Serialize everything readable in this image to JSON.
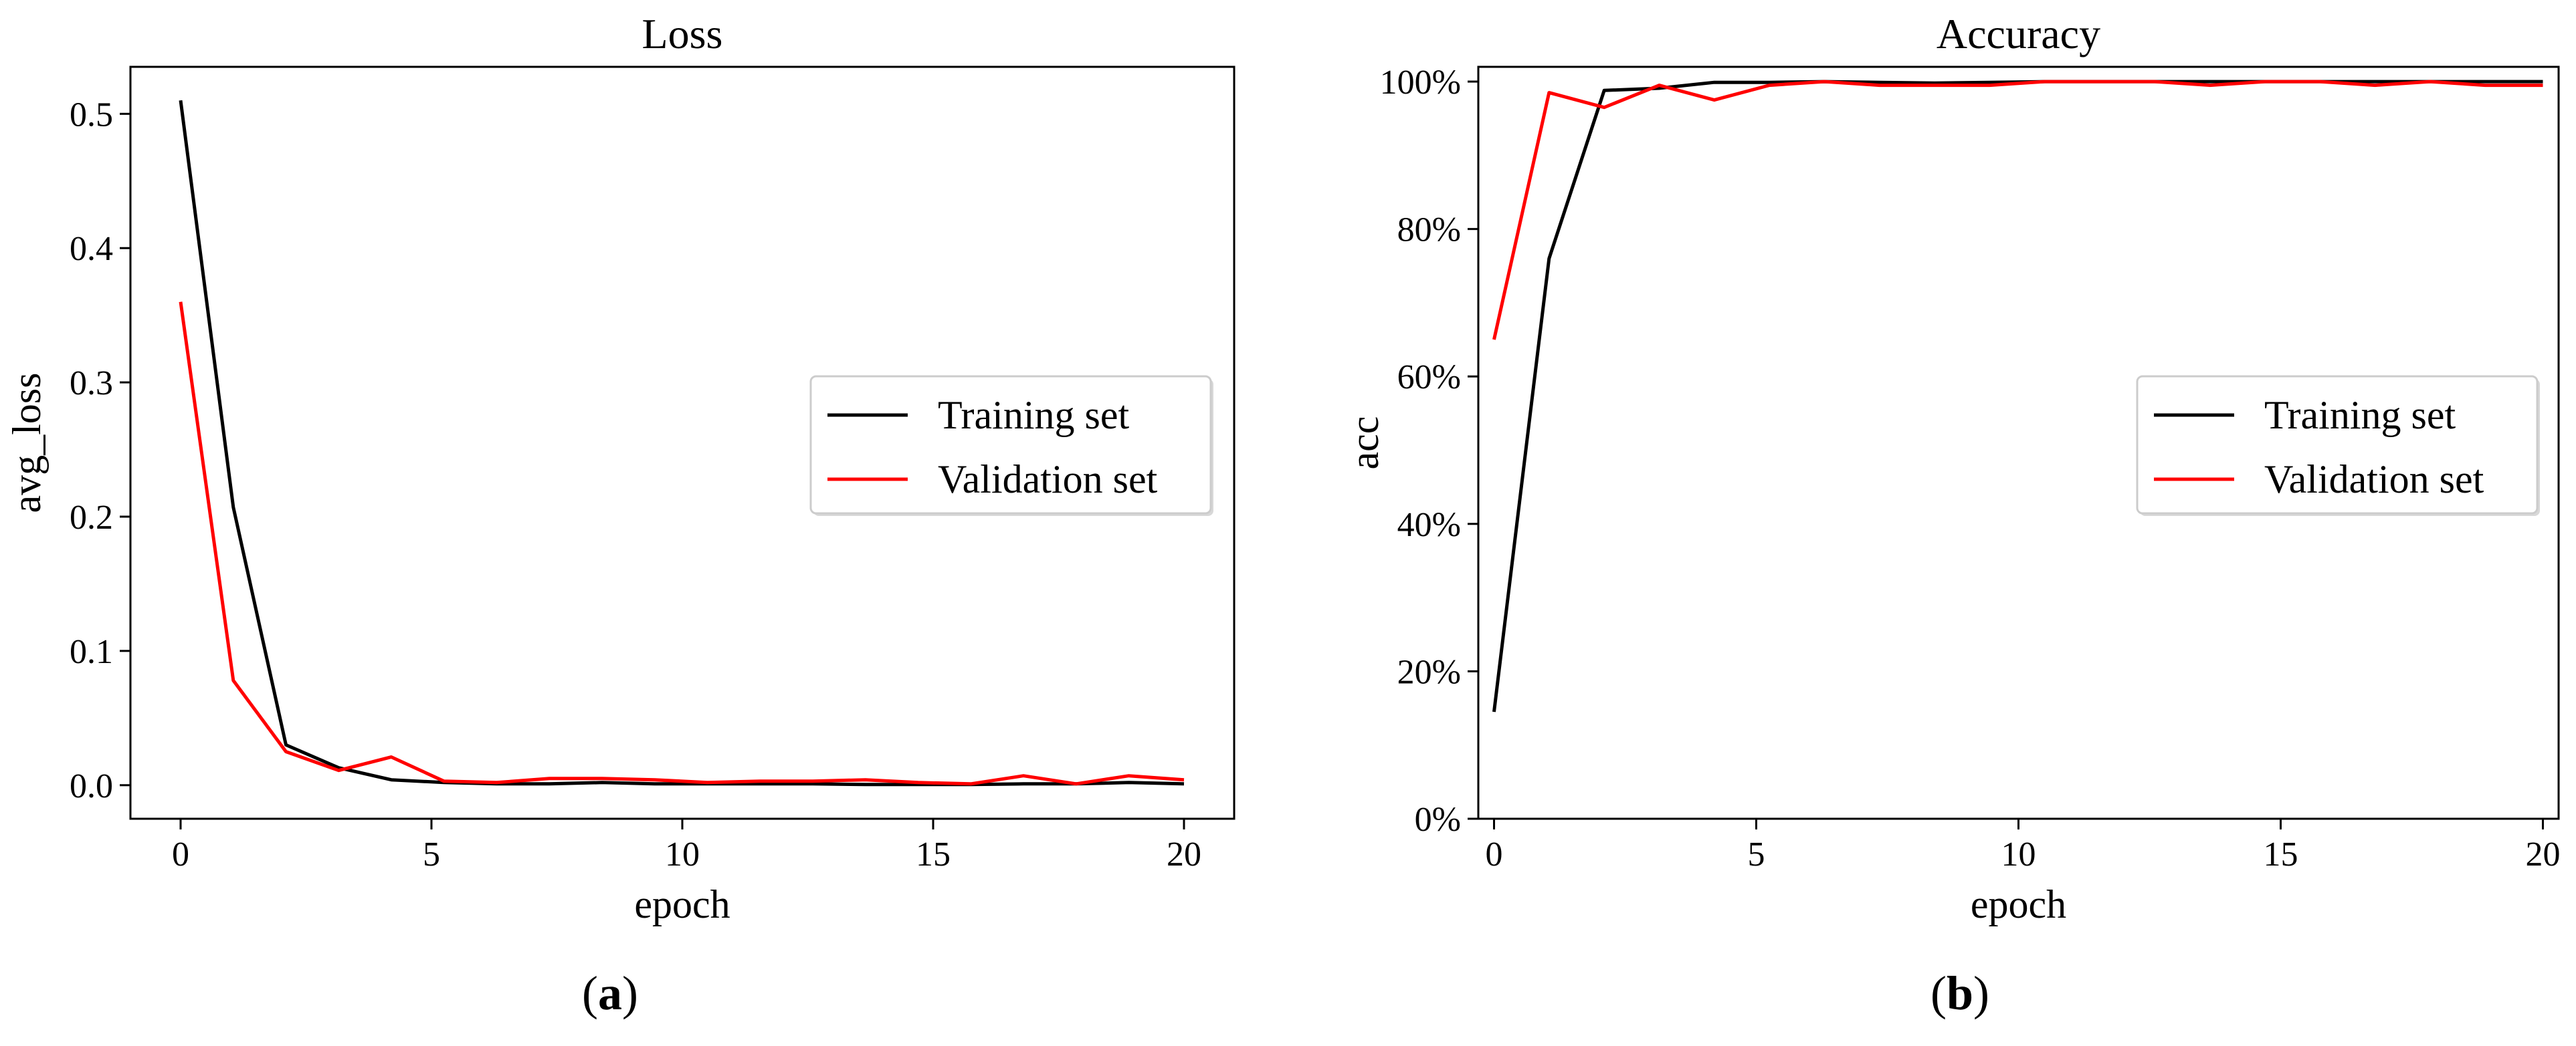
{
  "chart_data": [
    {
      "type": "line",
      "title": "Loss",
      "xlabel": "epoch",
      "ylabel": "avg_loss",
      "caption_open": "(",
      "caption_letter": "a",
      "caption_close": ")",
      "xlim": [
        -1,
        21
      ],
      "ylim": [
        -0.025,
        0.535
      ],
      "xticks": [
        0,
        5,
        10,
        15,
        20
      ],
      "xtick_labels": [
        "0",
        "5",
        "10",
        "15",
        "20"
      ],
      "yticks": [
        0.0,
        0.1,
        0.2,
        0.3,
        0.4,
        0.5
      ],
      "ytick_labels": [
        "0.0",
        "0.1",
        "0.2",
        "0.3",
        "0.4",
        "0.5"
      ],
      "legend_position": "center-right",
      "grid": false,
      "series": [
        {
          "name": "Training set",
          "color": "#000000",
          "x": [
            0,
            1.05,
            2.1,
            3.15,
            4.2,
            5.25,
            6.3,
            7.35,
            8.4,
            9.45,
            10.5,
            11.55,
            12.6,
            13.65,
            14.7,
            15.75,
            16.8,
            17.85,
            18.9,
            20
          ],
          "y": [
            0.51,
            0.207,
            0.03,
            0.013,
            0.004,
            0.002,
            0.001,
            0.001,
            0.002,
            0.001,
            0.001,
            0.001,
            0.001,
            0.0005,
            0.0005,
            0.0005,
            0.001,
            0.001,
            0.002,
            0.001
          ]
        },
        {
          "name": "Validation set",
          "color": "#ff0000",
          "x": [
            0,
            1.05,
            2.1,
            3.15,
            4.2,
            5.25,
            6.3,
            7.35,
            8.4,
            9.45,
            10.5,
            11.55,
            12.6,
            13.65,
            14.7,
            15.75,
            16.8,
            17.85,
            18.9,
            20
          ],
          "y": [
            0.36,
            0.078,
            0.025,
            0.011,
            0.021,
            0.003,
            0.002,
            0.005,
            0.005,
            0.004,
            0.002,
            0.003,
            0.003,
            0.004,
            0.002,
            0.001,
            0.007,
            0.001,
            0.007,
            0.004
          ]
        }
      ]
    },
    {
      "type": "line",
      "title": "Accuracy",
      "xlabel": "epoch",
      "ylabel": "acc",
      "caption_open": "(",
      "caption_letter": "b",
      "caption_close": ")",
      "xlim": [
        -0.3,
        20.3
      ],
      "ylim": [
        0,
        102
      ],
      "xticks": [
        0,
        5,
        10,
        15,
        20
      ],
      "xtick_labels": [
        "0",
        "5",
        "10",
        "15",
        "20"
      ],
      "yticks": [
        0,
        20,
        40,
        60,
        80,
        100
      ],
      "ytick_labels": [
        "0%",
        "20%",
        "40%",
        "60%",
        "80%",
        "100%"
      ],
      "legend_position": "center-right",
      "grid": false,
      "series": [
        {
          "name": "Training set",
          "color": "#000000",
          "x": [
            0,
            1.05,
            2.1,
            3.15,
            4.2,
            5.25,
            6.3,
            7.35,
            8.4,
            9.45,
            10.5,
            11.55,
            12.6,
            13.65,
            14.7,
            15.75,
            16.8,
            17.85,
            18.9,
            20
          ],
          "y": [
            14.5,
            76,
            98.8,
            99.1,
            99.9,
            99.9,
            100,
            99.9,
            99.8,
            99.9,
            100,
            100,
            100,
            100,
            100,
            100,
            100,
            100,
            100,
            100
          ]
        },
        {
          "name": "Validation set",
          "color": "#ff0000",
          "x": [
            0,
            1.05,
            2.1,
            3.15,
            4.2,
            5.25,
            6.3,
            7.35,
            8.4,
            9.45,
            10.5,
            11.55,
            12.6,
            13.65,
            14.7,
            15.75,
            16.8,
            17.85,
            18.9,
            20
          ],
          "y": [
            65,
            98.5,
            96.5,
            99.5,
            97.5,
            99.5,
            100,
            99.5,
            99.5,
            99.5,
            100,
            100,
            100,
            99.5,
            100,
            100,
            99.5,
            100,
            99.5,
            99.5
          ]
        }
      ]
    }
  ]
}
